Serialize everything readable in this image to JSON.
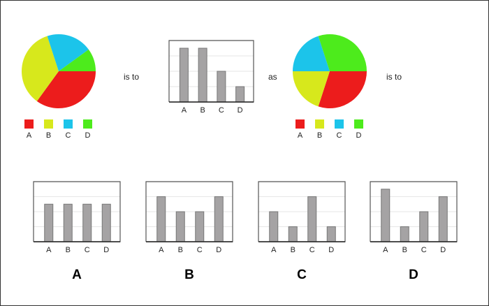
{
  "puzzle": {
    "connectors": [
      "is to",
      "as",
      "is to"
    ],
    "categories": [
      "A",
      "B",
      "C",
      "D"
    ],
    "colors": {
      "A": "#ec1c1c",
      "B": "#d7e81c",
      "C": "#1cc4ea",
      "D": "#4deb1c"
    },
    "bar_color": "#a5a3a4",
    "option_labels": [
      "A",
      "B",
      "C",
      "D"
    ]
  },
  "chart_data": [
    {
      "type": "pie",
      "categories": [
        "A",
        "B",
        "C",
        "D"
      ],
      "values": [
        35,
        35,
        20,
        10
      ],
      "legend": "bottom"
    },
    {
      "type": "bar",
      "categories": [
        "A",
        "B",
        "C",
        "D"
      ],
      "values": [
        3.5,
        3.5,
        2,
        1
      ],
      "ylim": [
        0,
        4
      ],
      "grid": true
    },
    {
      "type": "pie",
      "categories": [
        "A",
        "B",
        "C",
        "D"
      ],
      "values": [
        30,
        20,
        20,
        30
      ],
      "legend": "bottom"
    },
    {
      "type": "bar",
      "option": "A",
      "categories": [
        "A",
        "B",
        "C",
        "D"
      ],
      "values": [
        2.5,
        2.5,
        2.5,
        2.5
      ],
      "ylim": [
        0,
        4
      ],
      "grid": true
    },
    {
      "type": "bar",
      "option": "B",
      "categories": [
        "A",
        "B",
        "C",
        "D"
      ],
      "values": [
        3,
        2,
        2,
        3
      ],
      "ylim": [
        0,
        4
      ],
      "grid": true
    },
    {
      "type": "bar",
      "option": "C",
      "categories": [
        "A",
        "B",
        "C",
        "D"
      ],
      "values": [
        2,
        1,
        3,
        1
      ],
      "ylim": [
        0,
        4
      ],
      "grid": true
    },
    {
      "type": "bar",
      "option": "D",
      "categories": [
        "A",
        "B",
        "C",
        "D"
      ],
      "values": [
        3.5,
        1,
        2,
        3
      ],
      "ylim": [
        0,
        4
      ],
      "grid": true
    }
  ]
}
